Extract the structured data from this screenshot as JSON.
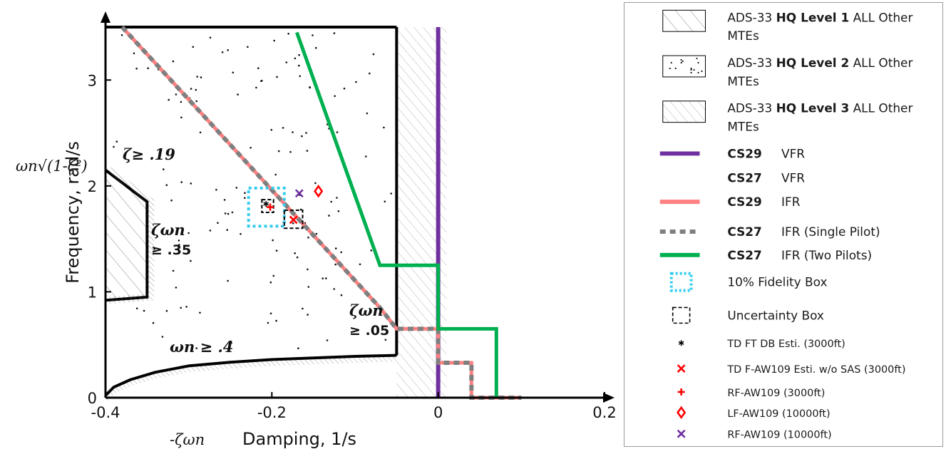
{
  "chart_data": {
    "type": "line",
    "xlabel": "Damping, 1/s",
    "xlabel_symbol": "-ζωn",
    "ylabel": "Frequency, rad/s",
    "ylabel_symbol": "ωn√(1-ζ²)",
    "xlim": [
      -0.4,
      0.2
    ],
    "ylim": [
      0,
      3.5
    ],
    "x_ticks": [
      "-0.4",
      "-0.2",
      "0",
      "0.2"
    ],
    "y_ticks": [
      "0",
      "1",
      "2",
      "3"
    ],
    "grid": false,
    "legend_position": "right",
    "annotations": {
      "zeta_19": "ζ≥ .19",
      "zeta_wn_35_a": "ζωn",
      "zeta_wn_35_b": "≥ .35",
      "zeta_wn_05_a": "ζωn",
      "zeta_wn_05_b": "≥ .05",
      "wn_4": "ωn ≥ .4"
    },
    "regions": [
      {
        "name": "ADS-33 HQ Level 1 ALL Other MTEs",
        "pattern": "wide-hatch",
        "boundary": [
          [
            -0.4,
            0.92
          ],
          [
            -0.35,
            0.95
          ],
          [
            -0.35,
            1.85
          ],
          [
            -0.4,
            2.15
          ]
        ]
      },
      {
        "name": "ADS-33 HQ Level 2 ALL Other MTEs",
        "pattern": "dots",
        "boundary": [
          [
            -0.4,
            0.02
          ],
          [
            -0.4,
            3.5
          ],
          [
            -0.05,
            3.5
          ],
          [
            -0.05,
            0.4
          ]
        ]
      },
      {
        "name": "ADS-33 HQ Level 3 ALL Other MTEs",
        "pattern": "fine-hatch",
        "boundary": [
          [
            -0.05,
            0
          ],
          [
            -0.05,
            3.5
          ],
          [
            0.01,
            3.5
          ],
          [
            0.01,
            0
          ]
        ]
      }
    ],
    "boundaries": [
      {
        "name": "wn_ge_04",
        "x": [
          -0.4,
          -0.39,
          -0.37,
          -0.34,
          -0.3,
          -0.25,
          -0.2,
          -0.15,
          -0.1,
          -0.05
        ],
        "y": [
          0.02,
          0.1,
          0.17,
          0.24,
          0.3,
          0.335,
          0.36,
          0.375,
          0.39,
          0.4
        ]
      },
      {
        "name": "L1_L2_top",
        "x": [
          -0.4,
          -0.05
        ],
        "y": [
          3.5,
          3.5
        ]
      },
      {
        "name": "L1_L2_right",
        "x": [
          -0.05,
          -0.05
        ],
        "y": [
          0.4,
          3.5
        ]
      }
    ],
    "series": [
      {
        "name": "CS29 VFR",
        "color": "#7030a0",
        "style": "solid",
        "x": [
          0,
          0
        ],
        "y": [
          0,
          3.5
        ]
      },
      {
        "name": "CS27 VFR",
        "color": "#7030a0",
        "style": "none",
        "x": [],
        "y": []
      },
      {
        "name": "CS29 IFR",
        "color": "#ff8080",
        "style": "solid",
        "x": [
          -0.38,
          -0.07,
          -0.05,
          0,
          0,
          0.04,
          0.04,
          0.1
        ],
        "y": [
          3.5,
          0.85,
          0.65,
          0.65,
          0.33,
          0.33,
          0,
          0
        ]
      },
      {
        "name": "CS27 IFR (Single Pilot)",
        "color": "#7f7f7f",
        "style": "dotted",
        "x": [
          -0.38,
          -0.07,
          -0.05,
          0,
          0,
          0.04,
          0.04,
          0.1
        ],
        "y": [
          3.5,
          0.85,
          0.65,
          0.65,
          0.33,
          0.33,
          0,
          0
        ]
      },
      {
        "name": "CS27 IFR (Two Pilots)",
        "color": "#00b050",
        "style": "solid",
        "x": [
          -0.17,
          -0.07,
          0,
          0,
          0.07,
          0.07
        ],
        "y": [
          3.45,
          1.25,
          1.25,
          0.65,
          0.65,
          0
        ]
      }
    ],
    "boxes": [
      {
        "name": "10% Fidelity Box",
        "color": "#33ccee",
        "style": "dotted",
        "x": [
          -0.228,
          -0.185
        ],
        "y": [
          1.62,
          1.98
        ]
      },
      {
        "name": "Uncertainty Box",
        "color": "#000000",
        "style": "dashed",
        "x": [
          -0.212,
          -0.198
        ],
        "y": [
          1.75,
          1.87
        ]
      },
      {
        "name": "Uncertainty Box",
        "color": "#000000",
        "style": "dashed",
        "x": [
          -0.185,
          -0.163
        ],
        "y": [
          1.6,
          1.77
        ]
      }
    ],
    "points": [
      {
        "name": "TD FT DB Esti. (3000ft)",
        "marker": "*",
        "color": "#000000",
        "x": -0.207,
        "y": 1.83
      },
      {
        "name": "TD F-AW109 Esti. w/o SAS (3000ft)",
        "marker": "x",
        "color": "#ff0000",
        "x": -0.174,
        "y": 1.68
      },
      {
        "name": "RF-AW109 (3000ft)",
        "marker": "+",
        "color": "#ff0000",
        "x": -0.202,
        "y": 1.8
      },
      {
        "name": "LF-AW109 (10000ft)",
        "marker": "diamond",
        "color": "#ff0000",
        "x": -0.144,
        "y": 1.95
      },
      {
        "name": "RF-AW109 (10000ft)",
        "marker": "x",
        "color": "#7030a0",
        "x": -0.167,
        "y": 1.93
      }
    ]
  },
  "legend": {
    "items": [
      {
        "kind": "wide-hatch",
        "prefix": "ADS-33",
        "bold": "HQ Level 1",
        "suffix": "ALL Other",
        "line2": "MTEs"
      },
      {
        "kind": "dots",
        "prefix": "ADS-33",
        "bold": "HQ Level 2",
        "suffix": "ALL Other",
        "line2": "MTEs"
      },
      {
        "kind": "fine-hatch",
        "prefix": "ADS-33",
        "bold": "HQ Level 3",
        "suffix": "ALL Other",
        "line2": "MTEs"
      },
      {
        "kind": "line",
        "color": "#7030a0",
        "bold": "CS29",
        "suffix": "VFR"
      },
      {
        "kind": "none",
        "bold": "CS27",
        "suffix": "VFR"
      },
      {
        "kind": "line",
        "color": "#ff8080",
        "bold": "CS29",
        "suffix": "IFR"
      },
      {
        "kind": "dotted",
        "color": "#7f7f7f",
        "bold": "CS27",
        "suffix": "IFR (Single Pilot)"
      },
      {
        "kind": "line",
        "color": "#00b050",
        "bold": "CS27",
        "suffix": "IFR (Two Pilots)"
      },
      {
        "kind": "fidelity-box",
        "color": "#33ccee",
        "label": "10% Fidelity Box"
      },
      {
        "kind": "uncert-box",
        "color": "#000000",
        "label": "Uncertainty Box"
      },
      {
        "kind": "marker",
        "marker": "*",
        "color": "#000000",
        "label": "TD FT DB Esti. (3000ft)"
      },
      {
        "kind": "marker",
        "marker": "x",
        "color": "#ff0000",
        "label": "TD F-AW109 Esti. w/o SAS (3000ft)"
      },
      {
        "kind": "marker",
        "marker": "+",
        "color": "#ff0000",
        "label": "RF-AW109 (3000ft)"
      },
      {
        "kind": "marker",
        "marker": "diamond",
        "color": "#ff0000",
        "label": "LF-AW109 (10000ft)"
      },
      {
        "kind": "marker",
        "marker": "x",
        "color": "#7030a0",
        "label": "RF-AW109 (10000ft)"
      }
    ]
  }
}
